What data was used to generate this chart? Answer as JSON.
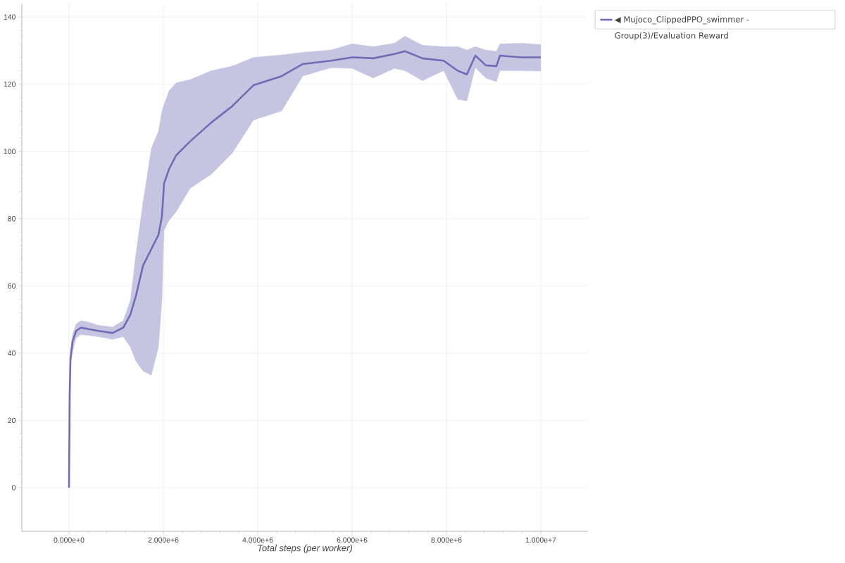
{
  "chart_data": {
    "type": "line",
    "xlabel": "Total steps (per worker)",
    "xlim": [
      -1000000,
      11000000
    ],
    "ylim": [
      -13,
      144
    ],
    "xticks": [
      {
        "value": 0,
        "label": "0.000e+0"
      },
      {
        "value": 2000000,
        "label": "2.000e+6"
      },
      {
        "value": 4000000,
        "label": "4.000e+6"
      },
      {
        "value": 6000000,
        "label": "6.000e+6"
      },
      {
        "value": 8000000,
        "label": "8.000e+6"
      },
      {
        "value": 10000000,
        "label": "1.000e+7"
      }
    ],
    "yticks": [
      0,
      20,
      40,
      60,
      80,
      100,
      120,
      140
    ],
    "grid": true,
    "legend": "top right",
    "marker": "none",
    "line_style": "solid",
    "series": [
      {
        "name": "◀ Mujoco_ClippedPPO_swimmer - Group(3)/Evaluation Reward",
        "color": "#6f6bb5",
        "x": [
          0,
          15000,
          30000,
          75000,
          150000,
          254000,
          403000,
          627000,
          925000,
          1149000,
          1299000,
          1418000,
          1567000,
          1746000,
          1896000,
          1970000,
          2015000,
          2119000,
          2269000,
          2567000,
          3015000,
          3463000,
          3910000,
          4507000,
          4955000,
          5552000,
          6000000,
          6448000,
          6896000,
          7119000,
          7493000,
          7940000,
          8239000,
          8433000,
          8612000,
          8836000,
          9060000,
          9134000,
          9582000,
          10000000
        ],
        "values": [
          0,
          27.8,
          38.2,
          43.5,
          46.6,
          47.6,
          47.2,
          46.6,
          46.0,
          47.6,
          51.4,
          57,
          66,
          71,
          75.2,
          80.7,
          90.5,
          94.7,
          98.8,
          103,
          108.6,
          113.5,
          119.7,
          122.4,
          126,
          127,
          128,
          127.7,
          129,
          129.8,
          127.7,
          127,
          124,
          122.9,
          128.5,
          125.6,
          125.4,
          128.5,
          128,
          128
        ],
        "lower": [
          0,
          24.7,
          36.1,
          40.3,
          44.5,
          45.5,
          45.3,
          44.9,
          44.1,
          44.9,
          41.8,
          37.6,
          34.7,
          33.4,
          41.8,
          55.6,
          76.5,
          79.4,
          82,
          89,
          93.2,
          99.5,
          109.3,
          112,
          122.4,
          124.9,
          124.7,
          121.8,
          124.7,
          124,
          121,
          124,
          115.5,
          115,
          124.9,
          121.8,
          120.7,
          124,
          124,
          123.9
        ],
        "upper": [
          0,
          29.9,
          40.3,
          45.5,
          48.7,
          49.7,
          49.3,
          48.3,
          47.8,
          49.7,
          55.6,
          69.6,
          84.8,
          101,
          106,
          112,
          114,
          118,
          120.4,
          121.4,
          124,
          125.4,
          128,
          128.7,
          129.5,
          130.2,
          132,
          131.2,
          132.2,
          134.3,
          131.6,
          131.2,
          131.2,
          130.2,
          131.2,
          130.2,
          129.8,
          132,
          132.2,
          131.8
        ]
      }
    ]
  }
}
